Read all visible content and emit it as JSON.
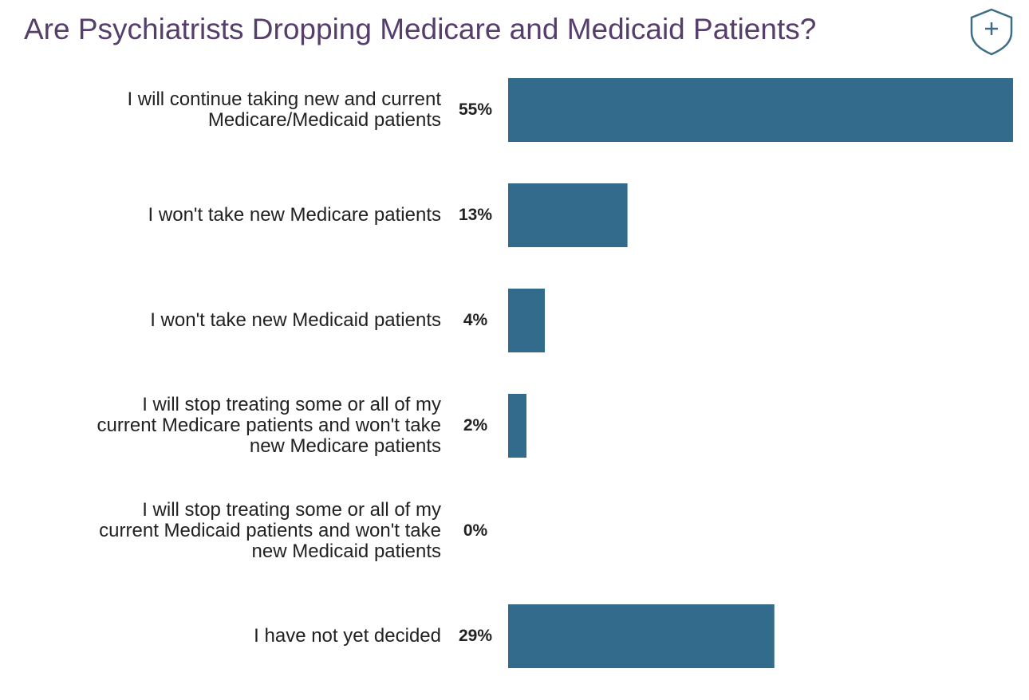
{
  "chart_data": {
    "type": "bar",
    "orientation": "horizontal",
    "title": "Are Psychiatrists Dropping Medicare and Medicaid Patients?",
    "categories": [
      "I will continue taking new and current\nMedicare/Medicaid patients",
      "I won't take new Medicare patients",
      "I won't take new Medicaid patients",
      "I will stop treating some or all of my\ncurrent Medicare patients and won't take\nnew Medicare patients",
      "I will stop treating some or all of my\ncurrent Medicaid patients and won't take\nnew Medicaid patients",
      "I have not yet decided"
    ],
    "values": [
      55,
      13,
      4,
      2,
      0,
      29
    ],
    "value_labels": [
      "55%",
      "13%",
      "4%",
      "2%",
      "0%",
      "29%"
    ],
    "color": "#336b8c",
    "xlim": [
      0,
      55
    ]
  }
}
